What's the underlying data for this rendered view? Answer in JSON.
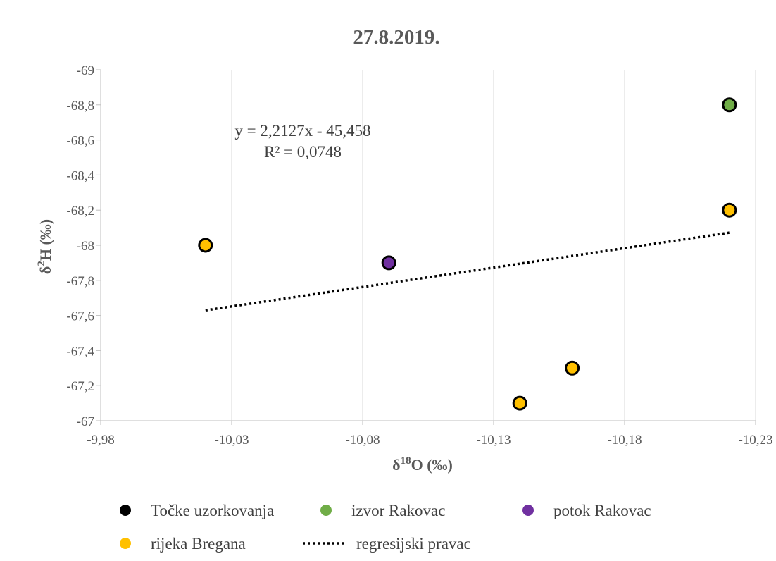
{
  "chart_data": {
    "type": "scatter",
    "title": "27.8.2019.",
    "xlabel_main": "δ",
    "xlabel_sup": "18",
    "xlabel_rest": "O (‰)",
    "ylabel_main": "δ",
    "ylabel_sup": "2",
    "ylabel_rest": "H (‰)",
    "xlim": [
      -9.98,
      -10.23
    ],
    "x_reversed": true,
    "ylim": [
      -67,
      -69
    ],
    "y_reversed": true,
    "x_ticks": [
      -9.98,
      -10.03,
      -10.08,
      -10.13,
      -10.18,
      -10.23
    ],
    "x_tick_labels": [
      "-9,98",
      "-10,03",
      "-10,08",
      "-10,13",
      "-10,18",
      "-10,23"
    ],
    "y_ticks": [
      -67,
      -67.2,
      -67.4,
      -67.6,
      -67.8,
      -68,
      -68.2,
      -68.4,
      -68.6,
      -68.8,
      -69
    ],
    "y_tick_labels": [
      "-67",
      "-67,2",
      "-67,4",
      "-67,6",
      "-67,8",
      "-68",
      "-68,2",
      "-68,4",
      "-68,6",
      "-68,8",
      "-69"
    ],
    "grid": "vertical",
    "series": [
      {
        "name": "Točke uzorkovanja",
        "color": "#000000",
        "points": []
      },
      {
        "name": "izvor Rakovac",
        "color": "#70ad47",
        "points": [
          [
            -10.22,
            -68.8
          ]
        ]
      },
      {
        "name": "potok Rakovac",
        "color": "#7030a0",
        "points": [
          [
            -10.09,
            -67.9
          ]
        ]
      },
      {
        "name": "rijeka Bregana",
        "color": "#ffc000",
        "points": [
          [
            -10.02,
            -68.0
          ],
          [
            -10.14,
            -67.1
          ],
          [
            -10.16,
            -67.3
          ],
          [
            -10.22,
            -68.2
          ]
        ]
      }
    ],
    "trendline": {
      "name": "regresijski pravac",
      "x_range": [
        -10.02,
        -10.22
      ],
      "slope": 2.2127,
      "intercept": -45.458,
      "equation": "y = 2,2127x  - 45,458",
      "r2": "R² = 0,0748",
      "color": "#000000"
    },
    "legend_position": "bottom"
  }
}
